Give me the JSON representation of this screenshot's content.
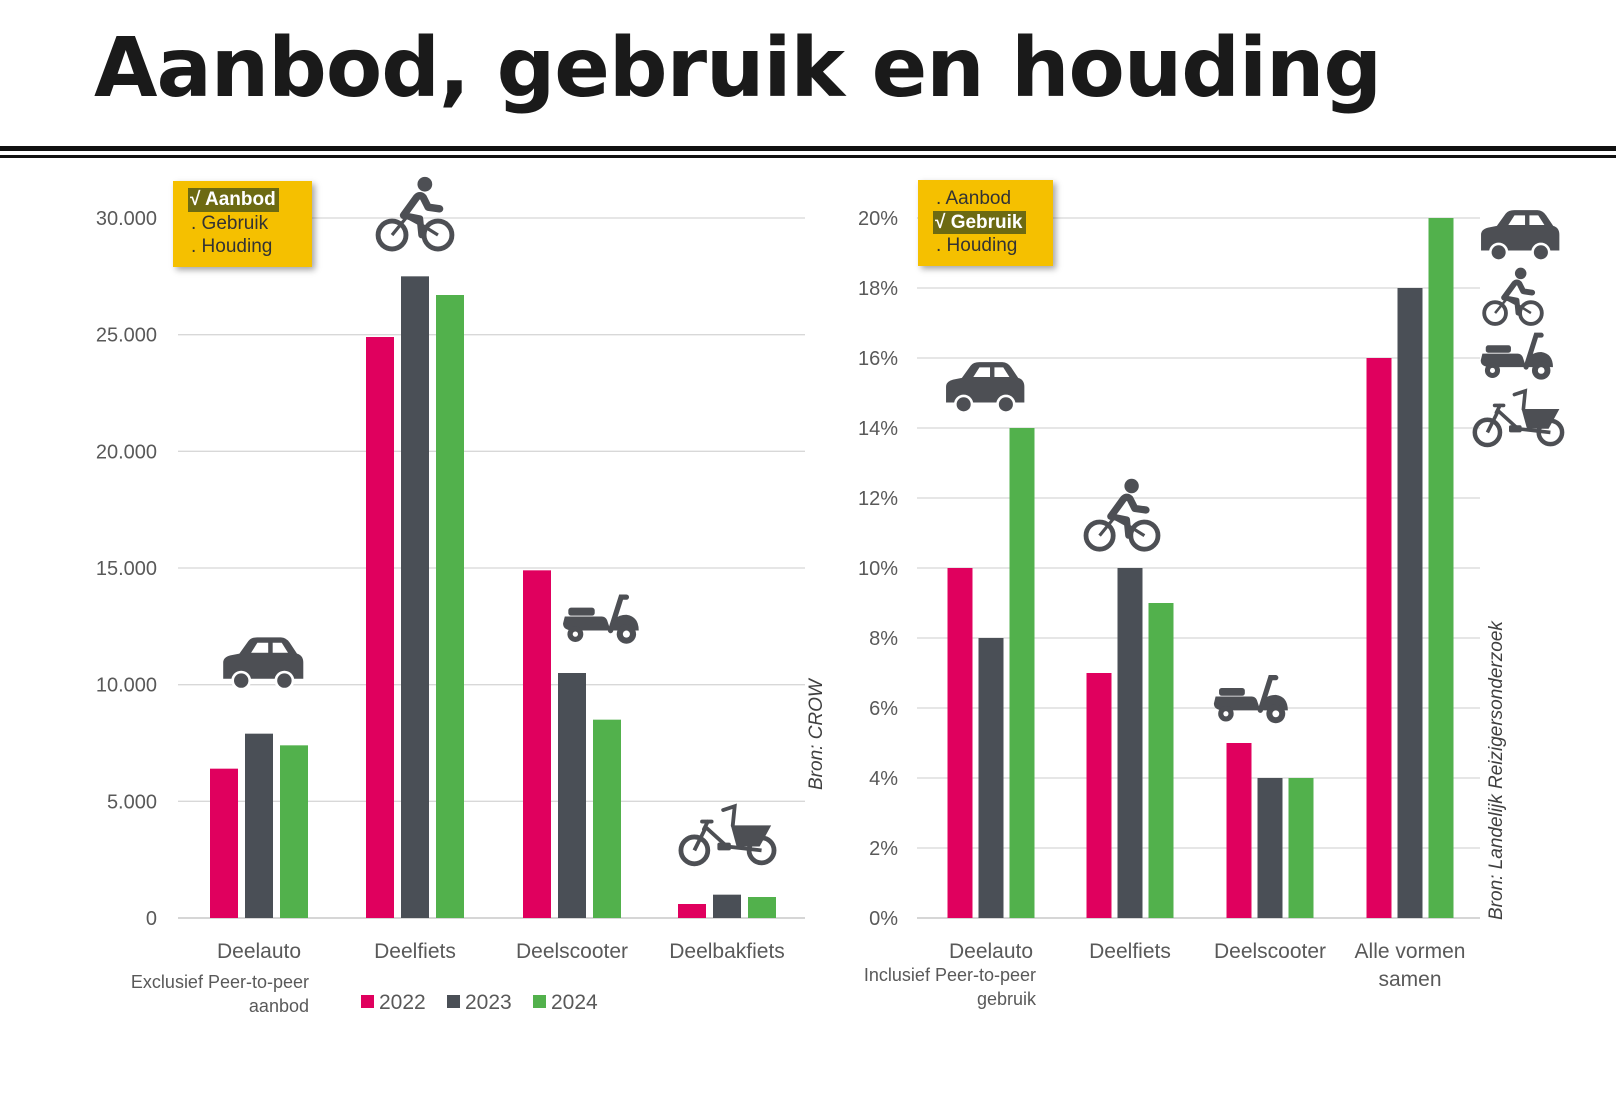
{
  "page": {
    "title": "Aanbod, gebruik en houding"
  },
  "colors": {
    "y2022": "#e0005e",
    "y2023": "#4a4f56",
    "y2024": "#52b14c",
    "sticky": "#f5c000",
    "icon": "#4d4f54",
    "grid": "#d8d8d8"
  },
  "menus": {
    "left": [
      {
        "label": "√ Aanbod",
        "active": true
      },
      {
        "label": ". Gebruik",
        "active": false
      },
      {
        "label": ". Houding",
        "active": false
      }
    ],
    "right": [
      {
        "label": ". Aanbod",
        "active": false
      },
      {
        "label": "√ Gebruik",
        "active": true
      },
      {
        "label": ". Houding",
        "active": false
      }
    ]
  },
  "chart_data": [
    {
      "type": "bar",
      "categories": [
        "Deelauto",
        "Deelfiets",
        "Deelscooter",
        "Deelbakfiets"
      ],
      "category_notes": [
        "Exclusief Peer-to-peer aanbod",
        "",
        "",
        ""
      ],
      "series": [
        {
          "name": "2022",
          "values": [
            6400,
            24900,
            14900,
            600
          ]
        },
        {
          "name": "2023",
          "values": [
            7900,
            27500,
            10500,
            1000
          ]
        },
        {
          "name": "2024",
          "values": [
            7400,
            26700,
            8500,
            900
          ]
        }
      ],
      "yticks": [
        "0",
        "5.000",
        "10.000",
        "15.000",
        "20.000",
        "25.000",
        "30.000"
      ],
      "ylim": [
        0,
        30000
      ],
      "source": "Bron: CROW",
      "icons": [
        "car-icon",
        "bicycle-icon",
        "scooter-icon",
        "cargo-bike-icon"
      ],
      "legend": [
        "2022",
        "2023",
        "2024"
      ],
      "grid": true,
      "legend_position": "bottom"
    },
    {
      "type": "bar",
      "categories": [
        "Deelauto",
        "Deelfiets",
        "Deelscooter",
        "Alle vormen samen"
      ],
      "category_notes": [
        "Inclusief Peer-to-peer gebruik",
        "",
        "",
        ""
      ],
      "series": [
        {
          "name": "2022",
          "values": [
            10,
            7,
            5,
            16
          ]
        },
        {
          "name": "2023",
          "values": [
            8,
            10,
            4,
            18
          ]
        },
        {
          "name": "2024",
          "values": [
            14,
            9,
            4,
            20
          ]
        }
      ],
      "yticks": [
        "0%",
        "2%",
        "4%",
        "6%",
        "8%",
        "10%",
        "12%",
        "14%",
        "16%",
        "18%",
        "20%"
      ],
      "ylim": [
        0,
        20
      ],
      "source": "Bron: Landelijk Reizigersonderzoek",
      "icons": [
        "car-icon",
        "bicycle-icon",
        "scooter-icon",
        "cargo-bike-icon"
      ],
      "grid": true
    }
  ]
}
